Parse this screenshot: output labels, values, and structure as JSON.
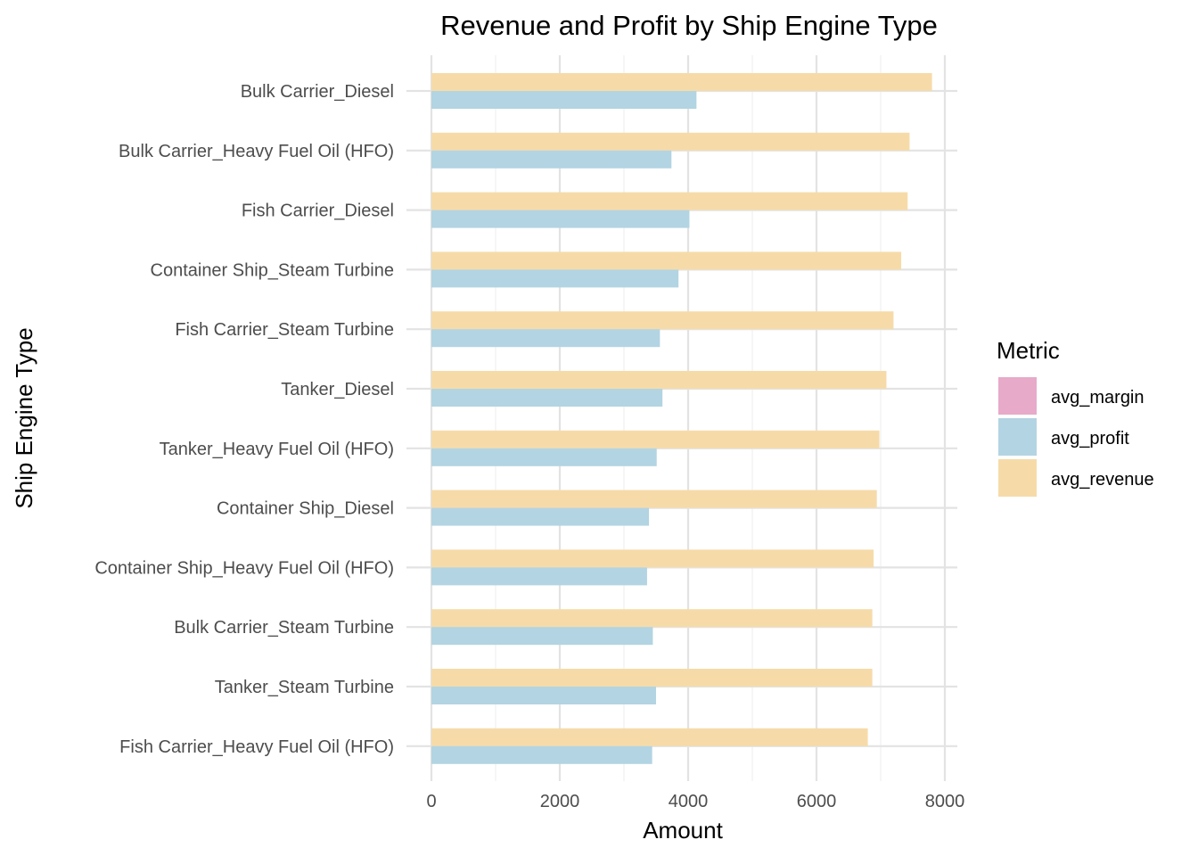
{
  "chart_data": {
    "type": "bar",
    "orientation": "horizontal",
    "title": "Revenue and Profit by Ship Engine Type",
    "xlabel": "Amount",
    "ylabel": "Ship Engine Type",
    "xlim": [
      0,
      8000
    ],
    "x_ticks": [
      "0",
      "2000",
      "4000",
      "6000",
      "8000"
    ],
    "grid": true,
    "legend": {
      "title": "Metric",
      "position": "right",
      "entries": [
        {
          "name": "avg_margin",
          "color": "#e7aac9"
        },
        {
          "name": "avg_profit",
          "color": "#b3d4e2"
        },
        {
          "name": "avg_revenue",
          "color": "#f6dba9"
        }
      ]
    },
    "categories": [
      "Bulk Carrier_Diesel",
      "Bulk Carrier_Heavy Fuel Oil (HFO)",
      "Fish Carrier_Diesel",
      "Container Ship_Steam Turbine",
      "Fish Carrier_Steam Turbine",
      "Tanker_Diesel",
      "Tanker_Heavy Fuel Oil (HFO)",
      "Container Ship_Diesel",
      "Container Ship_Heavy Fuel Oil (HFO)",
      "Bulk Carrier_Steam Turbine",
      "Tanker_Steam Turbine",
      "Fish Carrier_Heavy Fuel Oil (HFO)"
    ],
    "series": [
      {
        "name": "avg_margin",
        "color": "#e7aac9",
        "values": [
          0,
          0,
          0,
          0,
          0,
          0,
          0,
          0,
          0,
          0,
          0,
          0
        ]
      },
      {
        "name": "avg_profit",
        "color": "#b3d4e2",
        "values": [
          4130,
          3740,
          4020,
          3850,
          3560,
          3600,
          3510,
          3390,
          3360,
          3450,
          3500,
          3440
        ]
      },
      {
        "name": "avg_revenue",
        "color": "#f6dba9",
        "values": [
          7800,
          7450,
          7420,
          7320,
          7200,
          7090,
          6980,
          6940,
          6890,
          6870,
          6870,
          6800
        ]
      }
    ]
  }
}
